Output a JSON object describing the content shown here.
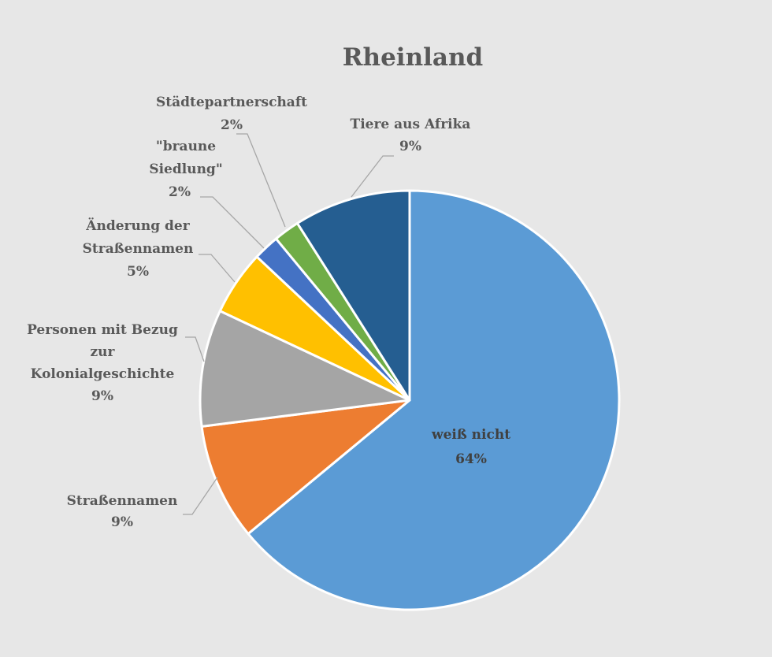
{
  "chart_data": {
    "type": "pie",
    "title": "Rheinland",
    "series": [
      {
        "values": [
          {
            "label": "weiß nicht",
            "value": 64,
            "display": "64%",
            "color": "#5b9bd5"
          },
          {
            "label": "Straßennamen",
            "value": 9,
            "display": "9%",
            "color": "#ed7d31"
          },
          {
            "label": "Personen mit Bezug zur Kolonialgeschichte",
            "value": 9,
            "display": "9%",
            "color": "#a5a5a5"
          },
          {
            "label": "Änderung der Straßennamen",
            "value": 5,
            "display": "5%",
            "color": "#ffc000"
          },
          {
            "label": "\"braune Siedlung\"",
            "value": 2,
            "display": "2%",
            "color": "#4472c4"
          },
          {
            "label": "Städtepartnerschaft",
            "value": 2,
            "display": "2%",
            "color": "#70ad47"
          },
          {
            "label": "Tiere aus Afrika",
            "value": 9,
            "display": "9%",
            "color": "#255e91"
          }
        ]
      }
    ],
    "legend": "none",
    "data_labels": "category and percentage"
  }
}
